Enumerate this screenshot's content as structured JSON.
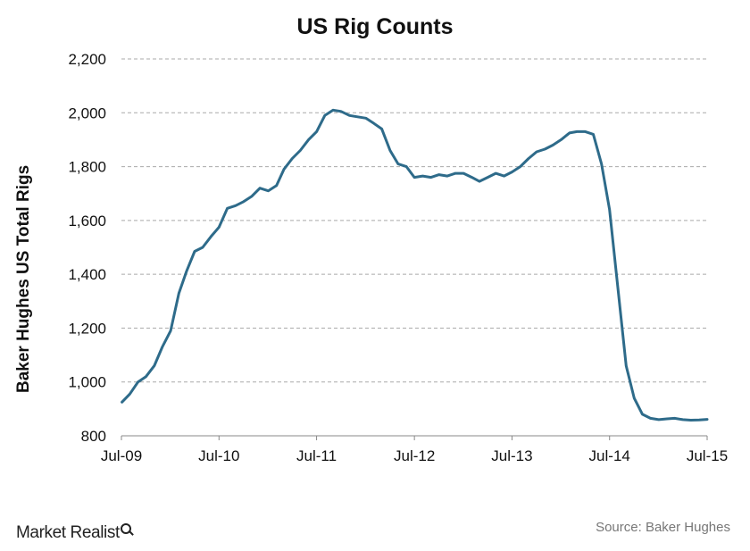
{
  "page": {
    "brand": "Market Realist",
    "brand_icon": "magnifier-icon",
    "source": "Source: Baker Hughes"
  },
  "chart_data": {
    "type": "line",
    "title": "US Rig Counts",
    "xlabel": "",
    "ylabel": "Baker Hughes US Total Rigs",
    "ylim": [
      800,
      2200
    ],
    "yticks": [
      800,
      1000,
      1200,
      1400,
      1600,
      1800,
      2000,
      2200
    ],
    "ytick_labels": [
      "800",
      "1,000",
      "1,200",
      "1,400",
      "1,600",
      "1,800",
      "2,000",
      "2,200"
    ],
    "xlim": [
      "2009-07",
      "2015-07"
    ],
    "xticks": [
      "2009-07",
      "2010-07",
      "2011-07",
      "2012-07",
      "2013-07",
      "2014-07",
      "2015-07"
    ],
    "xtick_labels": [
      "Jul-09",
      "Jul-10",
      "Jul-11",
      "Jul-12",
      "Jul-13",
      "Jul-14",
      "Jul-15"
    ],
    "grid": true,
    "legend": "none",
    "line_color": "#2e6b8a",
    "series": [
      {
        "x": [
          "2009-07-03",
          "2009-08-01",
          "2009-09-01",
          "2009-10-01",
          "2009-11-01",
          "2009-12-01",
          "2010-01-01",
          "2010-02-01",
          "2010-03-01",
          "2010-04-01",
          "2010-05-01",
          "2010-06-01",
          "2010-07-01",
          "2010-08-01",
          "2010-09-01",
          "2010-10-01",
          "2010-11-01",
          "2010-12-01",
          "2011-01-01",
          "2011-02-01",
          "2011-03-01",
          "2011-04-01",
          "2011-05-01",
          "2011-06-01",
          "2011-07-01",
          "2011-08-01",
          "2011-09-01",
          "2011-10-01",
          "2011-11-01",
          "2011-12-01",
          "2012-01-01",
          "2012-02-01",
          "2012-03-01",
          "2012-04-01",
          "2012-05-01",
          "2012-06-01",
          "2012-07-01",
          "2012-08-01",
          "2012-09-01",
          "2012-10-01",
          "2012-11-01",
          "2012-12-01",
          "2013-01-01",
          "2013-02-01",
          "2013-03-01",
          "2013-04-01",
          "2013-05-01",
          "2013-06-01",
          "2013-07-01",
          "2013-08-01",
          "2013-09-01",
          "2013-10-01",
          "2013-11-01",
          "2013-12-01",
          "2014-01-01",
          "2014-02-01",
          "2014-03-01",
          "2014-04-01",
          "2014-05-01",
          "2014-06-01",
          "2014-07-01",
          "2014-08-01",
          "2014-09-01",
          "2014-10-01",
          "2014-11-01",
          "2014-12-01",
          "2015-01-01",
          "2015-02-01",
          "2015-03-01",
          "2015-04-01",
          "2015-05-01",
          "2015-06-01",
          "2015-07-01"
        ],
        "y": [
          925,
          955,
          1000,
          1020,
          1060,
          1130,
          1190,
          1330,
          1410,
          1485,
          1500,
          1540,
          1575,
          1645,
          1655,
          1670,
          1690,
          1720,
          1710,
          1730,
          1790,
          1830,
          1860,
          1900,
          1930,
          1990,
          2010,
          2005,
          1990,
          1985,
          1980,
          1960,
          1940,
          1860,
          1810,
          1800,
          1760,
          1765,
          1760,
          1770,
          1765,
          1775,
          1775,
          1760,
          1745,
          1760,
          1775,
          1765,
          1780,
          1800,
          1830,
          1855,
          1865,
          1880,
          1900,
          1925,
          1930,
          1930,
          1920,
          1810,
          1640,
          1350,
          1060,
          940,
          880,
          865,
          860,
          863,
          865,
          860,
          858,
          859,
          861
        ]
      }
    ]
  }
}
